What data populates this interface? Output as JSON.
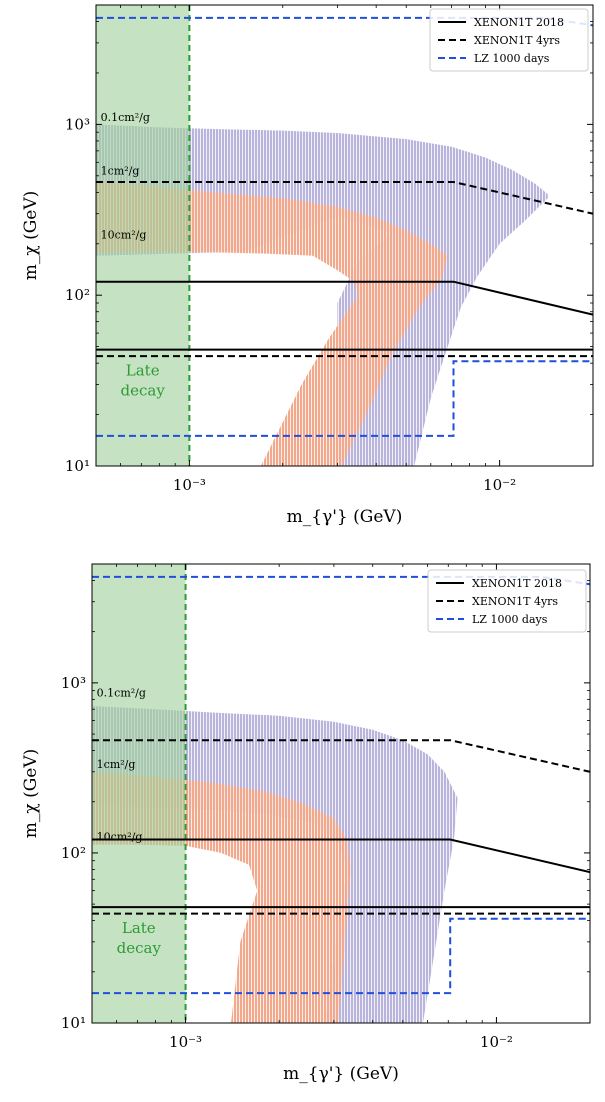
{
  "chart_data": [
    {
      "type": "area",
      "panel": "top",
      "xlabel": "m_{γ'} (GeV)",
      "ylabel": "m_χ (GeV)",
      "xscale": "log",
      "yscale": "log",
      "xlim": [
        0.0005,
        0.02
      ],
      "ylim": [
        10,
        5000
      ],
      "xticks": [
        {
          "v": 0.001,
          "label": "10⁻³"
        },
        {
          "v": 0.01,
          "label": "10⁻²"
        }
      ],
      "yticks": [
        {
          "v": 10,
          "label": "10¹"
        },
        {
          "v": 100,
          "label": "10²"
        },
        {
          "v": 1000,
          "label": "10³"
        }
      ],
      "legend_position": "top-right",
      "legend": [
        {
          "label": "XENON1T 2018",
          "style": "solid",
          "color": "#000000"
        },
        {
          "label": "XENON1T 4yrs",
          "style": "dashed",
          "color": "#000000"
        },
        {
          "label": "LZ 1000 days",
          "style": "dashed",
          "color": "#1f4fdc"
        }
      ],
      "late_decay": {
        "label_line1": "Late",
        "label_line2": "decay",
        "x_max": 0.001,
        "color": "#2e9a36"
      },
      "annotations": [
        {
          "text": "0.1cm²/g",
          "x": 0.00051,
          "y": 1050
        },
        {
          "text": "1cm²/g",
          "x": 0.00051,
          "y": 510
        },
        {
          "text": "10cm²/g",
          "x": 0.00051,
          "y": 215
        }
      ],
      "purple_region": [
        [
          0.0005,
          1000
        ],
        [
          0.0008,
          960
        ],
        [
          0.0012,
          940
        ],
        [
          0.002,
          920
        ],
        [
          0.003,
          890
        ],
        [
          0.005,
          820
        ],
        [
          0.007,
          740
        ],
        [
          0.009,
          640
        ],
        [
          0.011,
          540
        ],
        [
          0.013,
          450
        ],
        [
          0.0143,
          390
        ],
        [
          0.0143,
          370
        ],
        [
          0.012,
          270
        ],
        [
          0.01,
          200
        ],
        [
          0.0085,
          130
        ],
        [
          0.0075,
          85
        ],
        [
          0.0068,
          50
        ],
        [
          0.006,
          25
        ],
        [
          0.0053,
          10
        ],
        [
          0.003,
          10
        ],
        [
          0.003,
          90
        ],
        [
          0.0035,
          160
        ],
        [
          0.0045,
          230
        ],
        [
          0.003,
          290
        ],
        [
          0.0015,
          180
        ],
        [
          0.0005,
          170
        ]
      ],
      "orange_region": [
        [
          0.0005,
          470
        ],
        [
          0.0008,
          430
        ],
        [
          0.0012,
          400
        ],
        [
          0.002,
          370
        ],
        [
          0.003,
          330
        ],
        [
          0.004,
          285
        ],
        [
          0.005,
          240
        ],
        [
          0.006,
          200
        ],
        [
          0.0068,
          170
        ],
        [
          0.0065,
          125
        ],
        [
          0.0055,
          85
        ],
        [
          0.0045,
          45
        ],
        [
          0.0038,
          22
        ],
        [
          0.0031,
          10
        ],
        [
          0.0017,
          10
        ],
        [
          0.0023,
          30
        ],
        [
          0.0028,
          55
        ],
        [
          0.0035,
          100
        ],
        [
          0.0034,
          120
        ],
        [
          0.003,
          140
        ],
        [
          0.0025,
          170
        ],
        [
          0.0018,
          175
        ],
        [
          0.0012,
          178
        ],
        [
          0.0008,
          180
        ],
        [
          0.0005,
          178
        ]
      ],
      "series": [
        {
          "name": "XENON1T 2018",
          "style": "solid",
          "color": "#000000",
          "points": [
            [
              0.0005,
              120
            ],
            [
              0.0071,
              120
            ],
            [
              0.02,
              77
            ]
          ]
        },
        {
          "name": "XENON1T 2018",
          "style": "solid",
          "color": "#000000",
          "points": [
            [
              0.0005,
              48
            ],
            [
              0.02,
              48
            ]
          ]
        },
        {
          "name": "XENON1T 4yrs",
          "style": "dashed",
          "color": "#000000",
          "points": [
            [
              0.0005,
              460
            ],
            [
              0.0071,
              460
            ],
            [
              0.02,
              300
            ]
          ]
        },
        {
          "name": "XENON1T 4yrs",
          "style": "dashed",
          "color": "#000000",
          "points": [
            [
              0.0005,
              44
            ],
            [
              0.02,
              44
            ]
          ]
        },
        {
          "name": "LZ 1000 days",
          "style": "dashed",
          "color": "#1f4fdc",
          "points": [
            [
              0.0005,
              4200
            ],
            [
              0.014,
              4200
            ],
            [
              0.02,
              3800
            ]
          ]
        },
        {
          "name": "LZ 1000 days",
          "style": "dashed",
          "color": "#1f4fdc",
          "points": [
            [
              0.0005,
              15
            ],
            [
              0.0071,
              15
            ],
            [
              0.0071,
              41
            ],
            [
              0.02,
              41
            ]
          ]
        }
      ]
    },
    {
      "type": "area",
      "panel": "bottom",
      "xlabel": "m_{γ'} (GeV)",
      "ylabel": "m_χ (GeV)",
      "xscale": "log",
      "yscale": "log",
      "xlim": [
        0.0005,
        0.02
      ],
      "ylim": [
        10,
        5000
      ],
      "xticks": [
        {
          "v": 0.001,
          "label": "10⁻³"
        },
        {
          "v": 0.01,
          "label": "10⁻²"
        }
      ],
      "yticks": [
        {
          "v": 10,
          "label": "10¹"
        },
        {
          "v": 100,
          "label": "10²"
        },
        {
          "v": 1000,
          "label": "10³"
        }
      ],
      "legend_position": "top-right",
      "legend": [
        {
          "label": "XENON1T 2018",
          "style": "solid",
          "color": "#000000"
        },
        {
          "label": "XENON1T 4yrs",
          "style": "dashed",
          "color": "#000000"
        },
        {
          "label": "LZ 1000 days",
          "style": "dashed",
          "color": "#1f4fdc"
        }
      ],
      "late_decay": {
        "label_line1": "Late",
        "label_line2": "decay",
        "x_max": 0.001,
        "color": "#2e9a36"
      },
      "annotations": [
        {
          "text": "0.1cm²/g",
          "x": 0.00051,
          "y": 830
        },
        {
          "text": "1cm²/g",
          "x": 0.00051,
          "y": 315
        },
        {
          "text": "10cm²/g",
          "x": 0.00051,
          "y": 118
        }
      ],
      "purple_region": [
        [
          0.0005,
          730
        ],
        [
          0.0008,
          700
        ],
        [
          0.0012,
          670
        ],
        [
          0.002,
          640
        ],
        [
          0.003,
          590
        ],
        [
          0.004,
          530
        ],
        [
          0.005,
          460
        ],
        [
          0.006,
          380
        ],
        [
          0.0068,
          300
        ],
        [
          0.0075,
          210
        ],
        [
          0.0073,
          120
        ],
        [
          0.0068,
          60
        ],
        [
          0.0063,
          25
        ],
        [
          0.0058,
          10
        ],
        [
          0.0028,
          10
        ],
        [
          0.0031,
          40
        ],
        [
          0.0033,
          80
        ],
        [
          0.0031,
          115
        ],
        [
          0.0026,
          150
        ],
        [
          0.0018,
          170
        ],
        [
          0.0012,
          180
        ],
        [
          0.0008,
          185
        ],
        [
          0.0005,
          190
        ]
      ],
      "orange_region": [
        [
          0.0005,
          300
        ],
        [
          0.0008,
          280
        ],
        [
          0.0012,
          260
        ],
        [
          0.0018,
          230
        ],
        [
          0.0024,
          195
        ],
        [
          0.003,
          160
        ],
        [
          0.0033,
          120
        ],
        [
          0.0034,
          80
        ],
        [
          0.0033,
          40
        ],
        [
          0.0031,
          10
        ],
        [
          0.0014,
          10
        ],
        [
          0.0015,
          30
        ],
        [
          0.0017,
          60
        ],
        [
          0.0016,
          85
        ],
        [
          0.0013,
          100
        ],
        [
          0.001,
          110
        ],
        [
          0.0007,
          112
        ],
        [
          0.0005,
          112
        ]
      ],
      "series": [
        {
          "name": "XENON1T 2018",
          "style": "solid",
          "color": "#000000",
          "points": [
            [
              0.0005,
              120
            ],
            [
              0.0071,
              120
            ],
            [
              0.02,
              77
            ]
          ]
        },
        {
          "name": "XENON1T 2018",
          "style": "solid",
          "color": "#000000",
          "points": [
            [
              0.0005,
              48
            ],
            [
              0.02,
              48
            ]
          ]
        },
        {
          "name": "XENON1T 4yrs",
          "style": "dashed",
          "color": "#000000",
          "points": [
            [
              0.0005,
              460
            ],
            [
              0.0071,
              460
            ],
            [
              0.02,
              300
            ]
          ]
        },
        {
          "name": "XENON1T 4yrs",
          "style": "dashed",
          "color": "#000000",
          "points": [
            [
              0.0005,
              44
            ],
            [
              0.02,
              44
            ]
          ]
        },
        {
          "name": "LZ 1000 days",
          "style": "dashed",
          "color": "#1f4fdc",
          "points": [
            [
              0.0005,
              4200
            ],
            [
              0.014,
              4200
            ],
            [
              0.02,
              3800
            ]
          ]
        },
        {
          "name": "LZ 1000 days",
          "style": "dashed",
          "color": "#1f4fdc",
          "points": [
            [
              0.0005,
              15
            ],
            [
              0.0071,
              15
            ],
            [
              0.0071,
              41
            ],
            [
              0.02,
              41
            ]
          ]
        }
      ]
    }
  ],
  "colors": {
    "purple": "#b9b4dc",
    "orange": "#f3a88c",
    "late_decay_fill": "#9fd19a",
    "late_decay_line": "#2e9a36",
    "lz_blue": "#1f4fdc"
  }
}
